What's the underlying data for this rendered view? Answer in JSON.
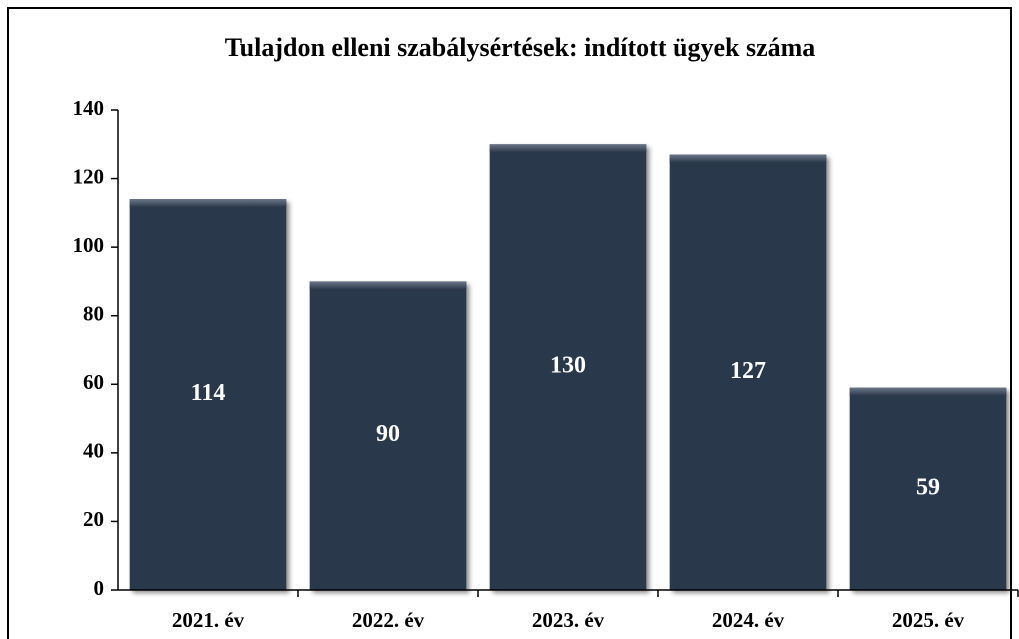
{
  "chart_data": {
    "type": "bar",
    "title": "Tulajdon elleni szabálysértések: indított ügyek száma",
    "categories": [
      "2021. év",
      "2022. év",
      "2023. év",
      "2024. év",
      "2025. év"
    ],
    "values": [
      114,
      90,
      130,
      127,
      59
    ],
    "color": "#2c394b",
    "ylim": [
      0,
      140
    ],
    "yticks": [
      0,
      20,
      40,
      60,
      80,
      100,
      120,
      140
    ],
    "grid": false
  }
}
